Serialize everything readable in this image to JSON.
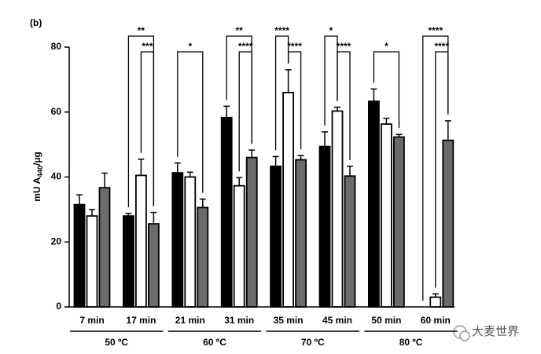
{
  "chart_data": {
    "type": "bar",
    "panel_label": "(b)",
    "y_label": [
      "mU A",
      "440",
      "/µg"
    ],
    "categories": [
      "7 min",
      "17 min",
      "21 min",
      "31 min",
      "35 min",
      "45 min",
      "50 min",
      "60 min"
    ],
    "series": [
      {
        "color": "#000000",
        "values": [
          31.5,
          28,
          41.3,
          58.3,
          43.3,
          49.4,
          63.3,
          null
        ],
        "errors": [
          3,
          0.8,
          3,
          3.5,
          3,
          4.5,
          3.8,
          null
        ]
      },
      {
        "color": "#ffffff",
        "values": [
          28,
          40.5,
          40,
          37.3,
          66,
          60.3,
          56.3,
          3
        ],
        "errors": [
          2,
          5,
          1.5,
          2.5,
          7,
          1.2,
          1.8,
          1
        ]
      },
      {
        "color": "#6b6b6b",
        "values": [
          36.7,
          25.6,
          30.6,
          46,
          45.3,
          40.3,
          52.3,
          51.3
        ],
        "errors": [
          4.5,
          3.5,
          2.6,
          2.3,
          1.3,
          3,
          0.8,
          6
        ]
      }
    ],
    "ylim": [
      0,
      80
    ],
    "yticks": [
      0,
      20,
      40,
      60,
      80
    ],
    "groups": [
      {
        "label": "50 ºC",
        "categories": [
          0,
          1
        ]
      },
      {
        "label": "60 ºC",
        "categories": [
          2,
          3
        ]
      },
      {
        "label": "70 ºC",
        "categories": [
          4,
          5
        ]
      },
      {
        "label": "80 ºC",
        "categories": [
          6,
          7
        ]
      }
    ],
    "comparisons": [
      {
        "category": 1,
        "between": [
          0,
          2
        ],
        "label": "**"
      },
      {
        "category": 1,
        "between": [
          1,
          2
        ],
        "label": "***"
      },
      {
        "category": 2,
        "between": [
          0,
          2
        ],
        "label": "*"
      },
      {
        "category": 3,
        "between": [
          0,
          2
        ],
        "label": "**"
      },
      {
        "category": 3,
        "between": [
          1,
          2
        ],
        "label": "****"
      },
      {
        "category": 4,
        "between": [
          0,
          1
        ],
        "label": "****"
      },
      {
        "category": 4,
        "between": [
          1,
          2
        ],
        "label": "****"
      },
      {
        "category": 5,
        "between": [
          0,
          1
        ],
        "label": "*"
      },
      {
        "category": 5,
        "between": [
          1,
          2
        ],
        "label": "****"
      },
      {
        "category": 6,
        "between": [
          0,
          2
        ],
        "label": "*"
      },
      {
        "category": 7,
        "between": [
          0,
          2
        ],
        "label": "****"
      },
      {
        "category": 7,
        "between": [
          1,
          2
        ],
        "label": "****"
      }
    ],
    "watermark": "大麦世界"
  }
}
